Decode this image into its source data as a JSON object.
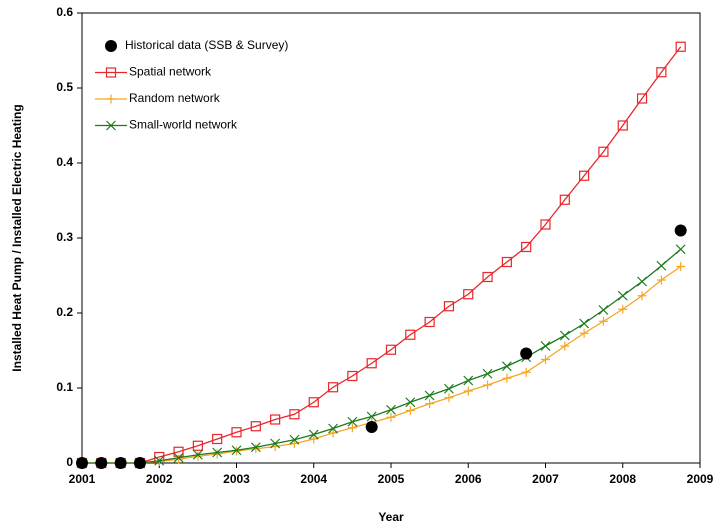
{
  "chart_data": {
    "type": "line",
    "xlabel": "Year",
    "ylabel": "Installed Heat Pump / Installed Electric Heating",
    "xlim": [
      2001,
      2009
    ],
    "xticks": [
      2001,
      2002,
      2003,
      2004,
      2005,
      2006,
      2007,
      2008,
      2009
    ],
    "ylim": [
      0,
      0.6
    ],
    "yticks": [
      0,
      0.1,
      0.2,
      0.3,
      0.4,
      0.5,
      0.6
    ],
    "legend": "upper left",
    "series": [
      {
        "name": "Historical data (SSB & Survey)",
        "color": "#000000",
        "marker": "circle",
        "line": false,
        "x": [
          2001,
          2001.25,
          2001.5,
          2001.75,
          2004.75,
          2006.75,
          2008.75
        ],
        "values": [
          0,
          0,
          0,
          0,
          0.048,
          0.146,
          0.31
        ]
      },
      {
        "name": "Spatial network",
        "color": "#e8262b",
        "marker": "square",
        "line": true,
        "x": [
          2001,
          2001.25,
          2001.5,
          2001.75,
          2002,
          2002.25,
          2002.5,
          2002.75,
          2003,
          2003.25,
          2003.5,
          2003.75,
          2004,
          2004.25,
          2004.5,
          2004.75,
          2005,
          2005.25,
          2005.5,
          2005.75,
          2006,
          2006.25,
          2006.5,
          2006.75,
          2007,
          2007.25,
          2007.5,
          2007.75,
          2008,
          2008.25,
          2008.5,
          2008.75
        ],
        "values": [
          0,
          0,
          0,
          0,
          0.008,
          0.015,
          0.023,
          0.032,
          0.041,
          0.049,
          0.058,
          0.065,
          0.081,
          0.101,
          0.116,
          0.133,
          0.151,
          0.171,
          0.188,
          0.209,
          0.225,
          0.248,
          0.268,
          0.288,
          0.318,
          0.351,
          0.383,
          0.415,
          0.45,
          0.486,
          0.521,
          0.555
        ]
      },
      {
        "name": "Random network",
        "color": "#f5a623",
        "marker": "plus",
        "line": true,
        "x": [
          2001,
          2001.25,
          2001.5,
          2001.75,
          2002,
          2002.25,
          2002.5,
          2002.75,
          2003,
          2003.25,
          2003.5,
          2003.75,
          2004,
          2004.25,
          2004.5,
          2004.75,
          2005,
          2005.25,
          2005.5,
          2005.75,
          2006,
          2006.25,
          2006.5,
          2006.75,
          2007,
          2007.25,
          2007.5,
          2007.75,
          2008,
          2008.25,
          2008.5,
          2008.75
        ],
        "values": [
          0,
          0,
          0,
          0,
          0.002,
          0.005,
          0.009,
          0.012,
          0.016,
          0.019,
          0.022,
          0.026,
          0.032,
          0.04,
          0.047,
          0.054,
          0.061,
          0.07,
          0.079,
          0.087,
          0.096,
          0.104,
          0.113,
          0.121,
          0.138,
          0.156,
          0.173,
          0.189,
          0.205,
          0.223,
          0.244,
          0.262
        ]
      },
      {
        "name": "Small-world network",
        "color": "#1a7a1a",
        "marker": "x",
        "line": true,
        "x": [
          2001,
          2001.25,
          2001.5,
          2001.75,
          2002,
          2002.25,
          2002.5,
          2002.75,
          2003,
          2003.25,
          2003.5,
          2003.75,
          2004,
          2004.25,
          2004.5,
          2004.75,
          2005,
          2005.25,
          2005.5,
          2005.75,
          2006,
          2006.25,
          2006.5,
          2006.75,
          2007,
          2007.25,
          2007.5,
          2007.75,
          2008,
          2008.25,
          2008.5,
          2008.75
        ],
        "values": [
          0,
          0,
          0,
          0,
          0.003,
          0.007,
          0.011,
          0.014,
          0.017,
          0.021,
          0.026,
          0.031,
          0.038,
          0.046,
          0.055,
          0.062,
          0.071,
          0.081,
          0.09,
          0.099,
          0.11,
          0.119,
          0.129,
          0.141,
          0.156,
          0.17,
          0.186,
          0.204,
          0.223,
          0.242,
          0.263,
          0.285
        ]
      }
    ]
  }
}
